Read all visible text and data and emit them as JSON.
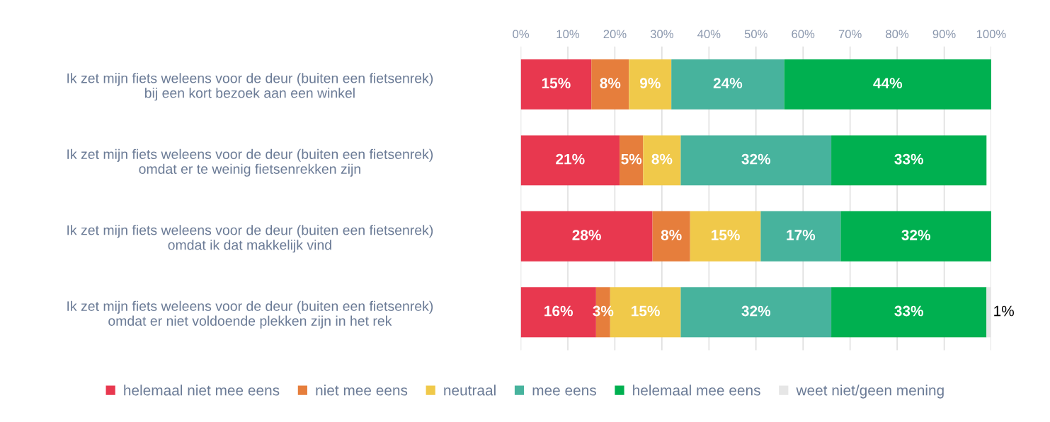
{
  "chart_data": {
    "type": "bar",
    "orientation": "horizontal",
    "stacked": true,
    "grid": "x",
    "legend": "bottom",
    "categories": [
      "Ik zet mijn fiets weleens voor de deur (buiten een fietsenrek)\nbij een kort bezoek aan een winkel",
      "Ik zet mijn fiets weleens voor de deur (buiten een fietsenrek)\nomdat er te weinig fietsenrekken zijn",
      "Ik zet mijn fiets weleens voor de deur (buiten een fietsenrek)\nomdat ik dat makkelijk vind",
      "Ik zet mijn fiets weleens voor de deur (buiten een fietsenrek)\nomdat er niet voldoende plekken zijn in het rek"
    ],
    "series": [
      {
        "name": "helemaal niet mee eens",
        "color": "#e8384f",
        "values": [
          15,
          21,
          28,
          16
        ],
        "value_labels": [
          "15%",
          "21%",
          "28%",
          "16%"
        ]
      },
      {
        "name": "niet mee eens",
        "color": "#e67e3c",
        "values": [
          8,
          5,
          8,
          3
        ],
        "value_labels": [
          "8%",
          "5%",
          "8%",
          "3%"
        ]
      },
      {
        "name": "neutraal",
        "color": "#f0c94a",
        "values": [
          9,
          8,
          15,
          15
        ],
        "value_labels": [
          "9%",
          "8%",
          "15%",
          "15%"
        ]
      },
      {
        "name": "mee eens",
        "color": "#47b39d",
        "values": [
          24,
          32,
          17,
          32
        ],
        "value_labels": [
          "24%",
          "32%",
          "17%",
          "32%"
        ]
      },
      {
        "name": "helemaal mee eens",
        "color": "#00b050",
        "values": [
          44,
          33,
          32,
          33
        ],
        "value_labels": [
          "44%",
          "33%",
          "32%",
          "33%"
        ]
      },
      {
        "name": "weet niet/geen mening",
        "color": "#e6e6e6",
        "values": [
          null,
          null,
          null,
          1
        ],
        "value_labels": [
          null,
          null,
          null,
          "1%"
        ]
      }
    ],
    "xlim": [
      0,
      100
    ],
    "xticks": [
      {
        "value": 0,
        "label": "0%"
      },
      {
        "value": 10,
        "label": "10%"
      },
      {
        "value": 20,
        "label": "20%"
      },
      {
        "value": 30,
        "label": "30%"
      },
      {
        "value": 40,
        "label": "40%"
      },
      {
        "value": 50,
        "label": "50%"
      },
      {
        "value": 60,
        "label": "60%"
      },
      {
        "value": 70,
        "label": "70%"
      },
      {
        "value": 80,
        "label": "80%"
      },
      {
        "value": 90,
        "label": "90%"
      },
      {
        "value": 100,
        "label": "100%"
      }
    ]
  }
}
